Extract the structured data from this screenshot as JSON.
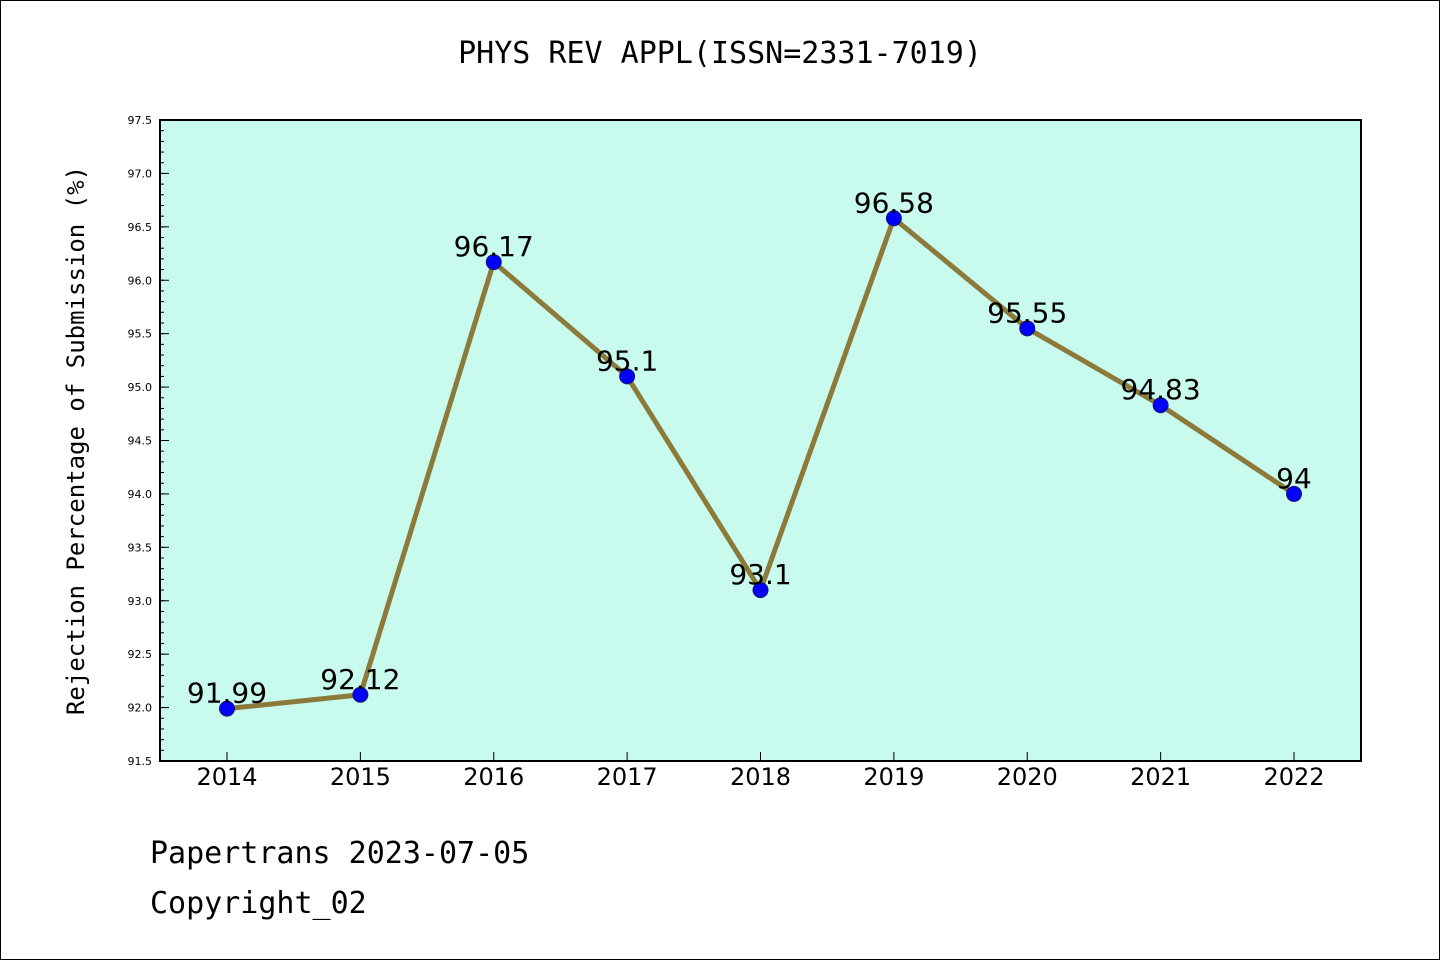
{
  "chart_data": {
    "type": "line",
    "title": "PHYS REV APPL(ISSN=2331-7019)",
    "xlabel": "",
    "ylabel": "Rejection Percentage of Submission (%)",
    "categories": [
      "2014",
      "2015",
      "2016",
      "2017",
      "2018",
      "2019",
      "2020",
      "2021",
      "2022"
    ],
    "values": [
      91.99,
      92.12,
      96.17,
      95.1,
      93.1,
      96.58,
      95.55,
      94.83,
      94
    ],
    "data_labels": [
      "91.99",
      "92.12",
      "96.17",
      "95.1",
      "93.1",
      "96.58",
      "95.55",
      "94.83",
      "94"
    ],
    "ylim": [
      91.5,
      97.5
    ],
    "y_ticks": [
      "91.5",
      "92.0",
      "92.5",
      "93.0",
      "93.5",
      "94.0",
      "94.5",
      "95.0",
      "95.5",
      "96.0",
      "96.5",
      "97.0",
      "97.5"
    ],
    "grid": false,
    "legend": "none",
    "colors": {
      "plot_background": "#c8faee",
      "line": "#8c7a3a",
      "marker": "#0000ff",
      "axes": "#000000"
    }
  },
  "footer": {
    "line1": "Papertrans 2023-07-05",
    "line2": "Copyright_02"
  }
}
